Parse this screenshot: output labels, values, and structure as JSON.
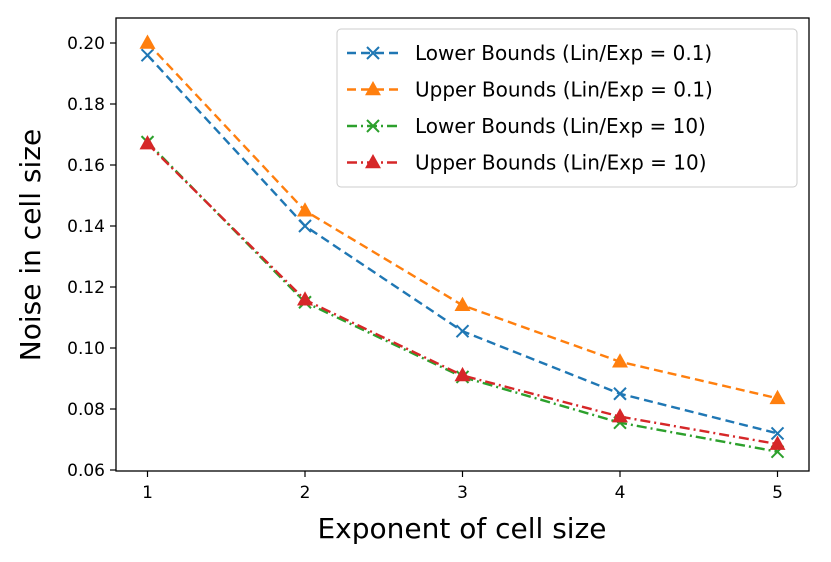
{
  "chart_data": {
    "type": "line",
    "xlabel": "Exponent of cell size",
    "ylabel": "Noise in cell size",
    "x": [
      1,
      2,
      3,
      4,
      5
    ],
    "xticks": [
      "1",
      "2",
      "3",
      "4",
      "5"
    ],
    "yticks": [
      "0.06",
      "0.08",
      "0.10",
      "0.12",
      "0.14",
      "0.16",
      "0.18",
      "0.20"
    ],
    "ylim": [
      0.06,
      0.2
    ],
    "grid": false,
    "legend_position": "top-right",
    "series": [
      {
        "name": "Lower Bounds (Lin/Exp = 0.1)",
        "values": [
          0.196,
          0.14,
          0.1055,
          0.085,
          0.072
        ],
        "color": "#1f77b4",
        "linestyle": "dashed",
        "marker": "x"
      },
      {
        "name": "Upper Bounds (Lin/Exp = 0.1)",
        "values": [
          0.2,
          0.145,
          0.114,
          0.0955,
          0.0835
        ],
        "color": "#ff7f0e",
        "linestyle": "dashed",
        "marker": "triangle"
      },
      {
        "name": "Lower Bounds (Lin/Exp = 10)",
        "values": [
          0.1675,
          0.115,
          0.0905,
          0.0755,
          0.066
        ],
        "color": "#2ca02c",
        "linestyle": "dashdot",
        "marker": "x"
      },
      {
        "name": "Upper Bounds (Lin/Exp = 10)",
        "values": [
          0.167,
          0.1158,
          0.091,
          0.0775,
          0.0685
        ],
        "color": "#d62728",
        "linestyle": "dashdot",
        "marker": "triangle"
      }
    ]
  }
}
